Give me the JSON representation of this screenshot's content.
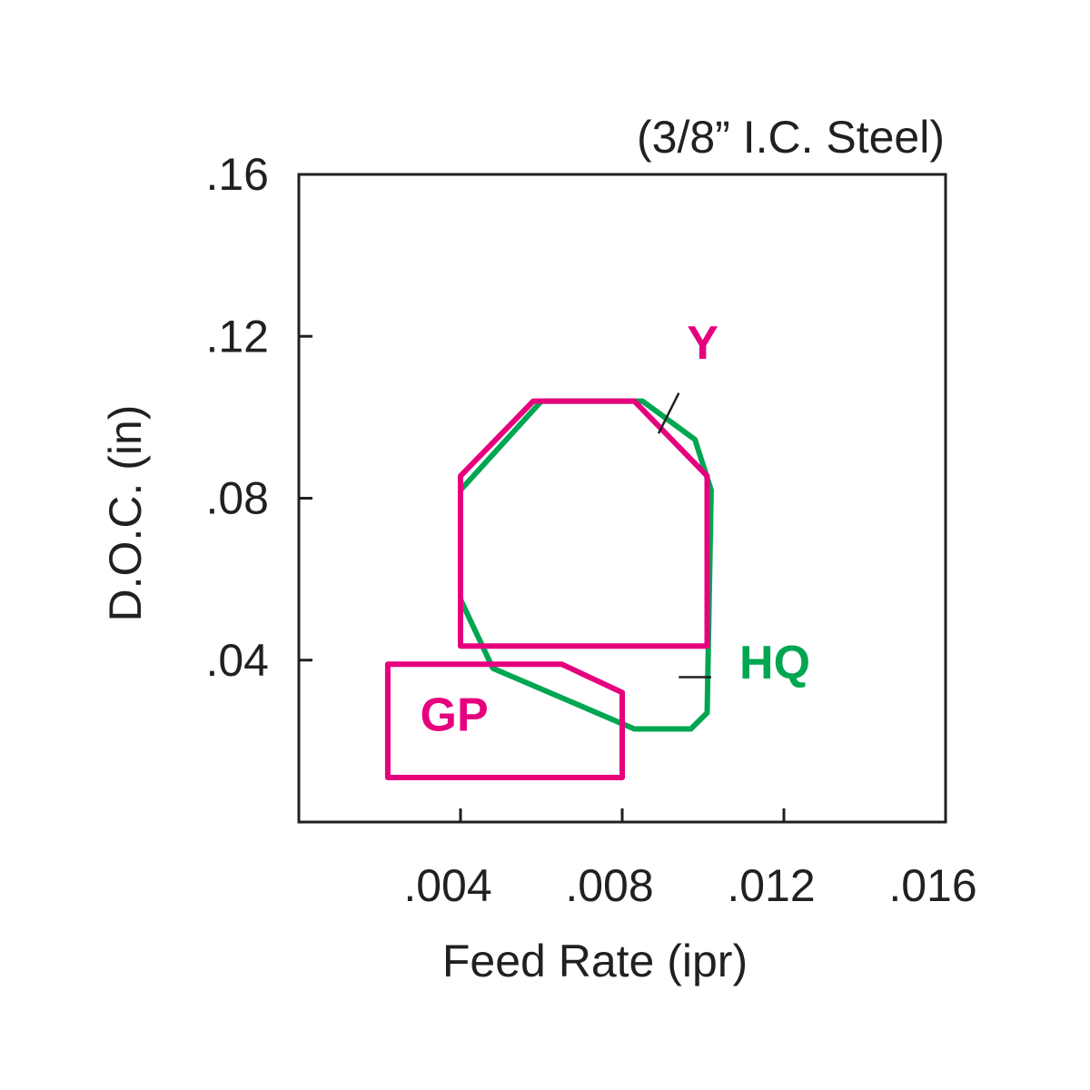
{
  "chart_data": {
    "type": "area",
    "subtitle": "(3/8” I.C. Steel)",
    "xlabel": "Feed Rate (ipr)",
    "ylabel": "D.O.C. (in)",
    "xlim": [
      0,
      0.016
    ],
    "ylim": [
      0,
      0.16
    ],
    "x_ticks": [
      0.004,
      0.008,
      0.012,
      0.016
    ],
    "x_tick_labels": [
      ".004",
      ".008",
      ".012",
      ".016"
    ],
    "y_ticks": [
      0.04,
      0.08,
      0.12,
      0.16
    ],
    "y_tick_labels": [
      ".04",
      ".08",
      ".12",
      ".16"
    ],
    "grid": false,
    "colors": {
      "magenta": "#e6007e",
      "green": "#00a651",
      "axis": "#231f20"
    },
    "series": [
      {
        "name": "HQ",
        "color": "#00a651",
        "label_pos": [
          0.0109,
          0.0355
        ],
        "leader": [
          [
            0.0094,
            0.0358
          ],
          [
            0.0102,
            0.0358
          ]
        ],
        "polygon": [
          [
            0.004,
            0.082
          ],
          [
            0.004,
            0.055
          ],
          [
            0.0048,
            0.038
          ],
          [
            0.0083,
            0.023
          ],
          [
            0.0097,
            0.023
          ],
          [
            0.0101,
            0.027
          ],
          [
            0.0102,
            0.082
          ],
          [
            0.0098,
            0.0945
          ],
          [
            0.0085,
            0.104
          ],
          [
            0.006,
            0.104
          ]
        ]
      },
      {
        "name": "Y",
        "color": "#e6007e",
        "label_pos": [
          0.0096,
          0.1145
        ],
        "leader": [
          [
            0.0089,
            0.096
          ],
          [
            0.0094,
            0.106
          ]
        ],
        "polygon": [
          [
            0.004,
            0.0855
          ],
          [
            0.0058,
            0.104
          ],
          [
            0.0083,
            0.104
          ],
          [
            0.0101,
            0.0855
          ],
          [
            0.0101,
            0.0435
          ],
          [
            0.004,
            0.0435
          ],
          [
            0.004,
            0.0855
          ]
        ]
      },
      {
        "name": "GP",
        "color": "#e6007e",
        "label_pos": [
          0.003,
          0.0225
        ],
        "polygon": [
          [
            0.0022,
            0.039
          ],
          [
            0.0065,
            0.039
          ],
          [
            0.008,
            0.032
          ],
          [
            0.008,
            0.011
          ],
          [
            0.0022,
            0.011
          ],
          [
            0.0022,
            0.039
          ]
        ]
      }
    ]
  }
}
